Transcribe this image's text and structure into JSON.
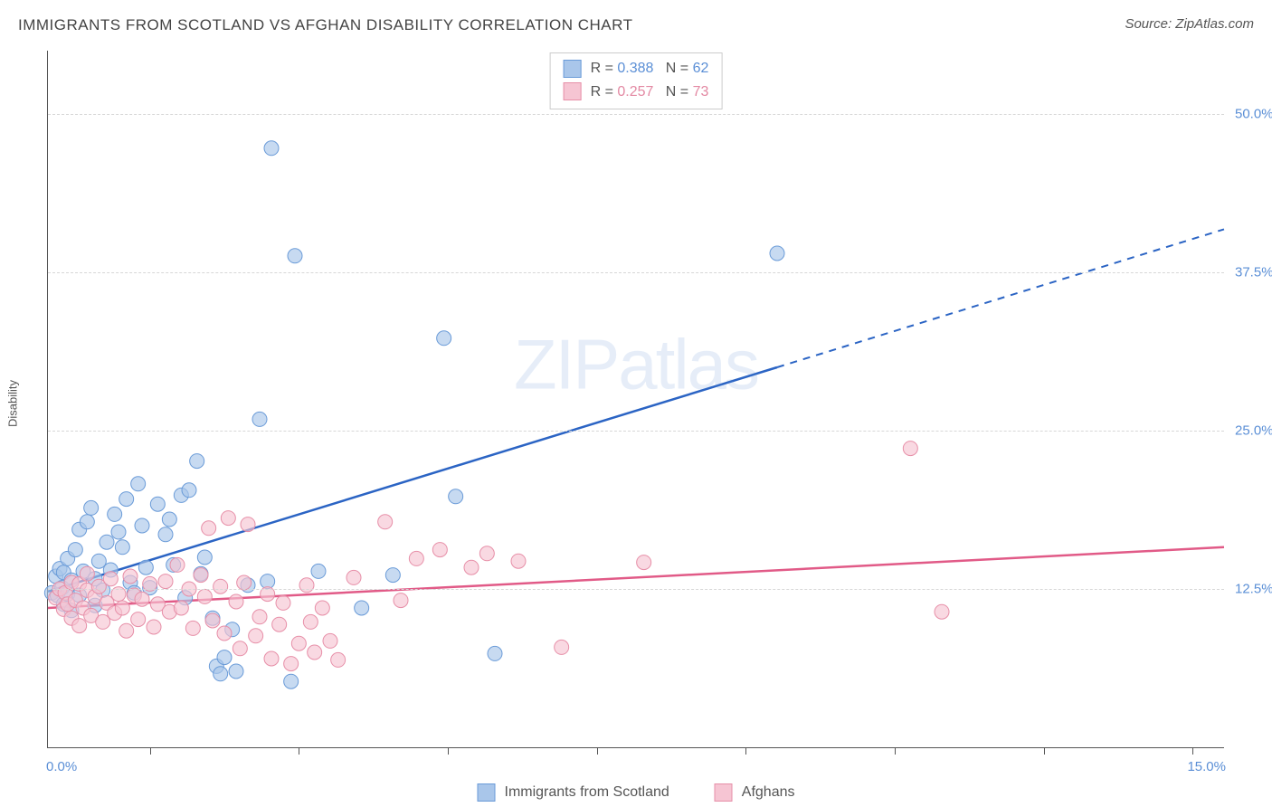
{
  "title": "IMMIGRANTS FROM SCOTLAND VS AFGHAN DISABILITY CORRELATION CHART",
  "source": "Source: ZipAtlas.com",
  "watermark": {
    "bold": "ZIP",
    "thin": "atlas"
  },
  "y_axis_label": "Disability",
  "chart": {
    "type": "scatter",
    "xlim": [
      0,
      15
    ],
    "ylim": [
      0,
      55
    ],
    "x_ticks": [
      1.3,
      3.2,
      5.1,
      7.0,
      8.9,
      10.8,
      12.7,
      14.6
    ],
    "y_grid": [
      12.5,
      25.0,
      37.5,
      50.0
    ],
    "y_tick_labels": [
      "12.5%",
      "25.0%",
      "37.5%",
      "50.0%"
    ],
    "x_min_label": "0.0%",
    "x_max_label": "15.0%",
    "grid_color": "#d7d7d7",
    "axis_color": "#555555",
    "series": [
      {
        "name": "Immigrants from Scotland",
        "fill": "#a9c6ea",
        "stroke": "#6a9bd8",
        "line_color": "#2b64c4",
        "r_value": "0.388",
        "n_value": "62",
        "trend": {
          "x1": 0,
          "y1": 12.3,
          "x2": 9.3,
          "y2": 30.0,
          "dash_from_x": 9.3,
          "dash_to_x": 15.0,
          "dash_to_y": 40.9
        },
        "points": [
          [
            0.05,
            12.2
          ],
          [
            0.1,
            13.5
          ],
          [
            0.12,
            12.0
          ],
          [
            0.15,
            14.1
          ],
          [
            0.18,
            12.6
          ],
          [
            0.2,
            11.3
          ],
          [
            0.2,
            13.8
          ],
          [
            0.25,
            14.9
          ],
          [
            0.25,
            12.1
          ],
          [
            0.3,
            13.2
          ],
          [
            0.3,
            10.8
          ],
          [
            0.35,
            15.6
          ],
          [
            0.4,
            17.2
          ],
          [
            0.4,
            12.0
          ],
          [
            0.45,
            13.9
          ],
          [
            0.5,
            17.8
          ],
          [
            0.55,
            18.9
          ],
          [
            0.6,
            13.3
          ],
          [
            0.6,
            11.2
          ],
          [
            0.65,
            14.7
          ],
          [
            0.7,
            12.4
          ],
          [
            0.75,
            16.2
          ],
          [
            0.8,
            14.0
          ],
          [
            0.85,
            18.4
          ],
          [
            0.9,
            17.0
          ],
          [
            0.95,
            15.8
          ],
          [
            1.0,
            19.6
          ],
          [
            1.05,
            13.0
          ],
          [
            1.1,
            12.2
          ],
          [
            1.15,
            20.8
          ],
          [
            1.2,
            17.5
          ],
          [
            1.25,
            14.2
          ],
          [
            1.3,
            12.6
          ],
          [
            1.4,
            19.2
          ],
          [
            1.5,
            16.8
          ],
          [
            1.55,
            18.0
          ],
          [
            1.6,
            14.4
          ],
          [
            1.7,
            19.9
          ],
          [
            1.75,
            11.8
          ],
          [
            1.8,
            20.3
          ],
          [
            1.9,
            22.6
          ],
          [
            1.95,
            13.7
          ],
          [
            2.0,
            15.0
          ],
          [
            2.1,
            10.2
          ],
          [
            2.15,
            6.4
          ],
          [
            2.2,
            5.8
          ],
          [
            2.25,
            7.1
          ],
          [
            2.35,
            9.3
          ],
          [
            2.4,
            6.0
          ],
          [
            2.55,
            12.8
          ],
          [
            2.7,
            25.9
          ],
          [
            2.8,
            13.1
          ],
          [
            2.85,
            47.3
          ],
          [
            3.1,
            5.2
          ],
          [
            3.15,
            38.8
          ],
          [
            3.45,
            13.9
          ],
          [
            4.0,
            11.0
          ],
          [
            4.4,
            13.6
          ],
          [
            5.05,
            32.3
          ],
          [
            5.2,
            19.8
          ],
          [
            5.7,
            7.4
          ],
          [
            9.3,
            39.0
          ]
        ]
      },
      {
        "name": "Afghans",
        "fill": "#f6c5d3",
        "stroke": "#e78fa8",
        "line_color": "#e15a87",
        "r_value": "0.257",
        "n_value": "73",
        "trend": {
          "x1": 0,
          "y1": 11.0,
          "x2": 15.0,
          "y2": 15.8
        },
        "points": [
          [
            0.1,
            11.8
          ],
          [
            0.15,
            12.5
          ],
          [
            0.2,
            10.9
          ],
          [
            0.22,
            12.2
          ],
          [
            0.25,
            11.3
          ],
          [
            0.3,
            13.0
          ],
          [
            0.3,
            10.2
          ],
          [
            0.35,
            11.6
          ],
          [
            0.4,
            12.9
          ],
          [
            0.4,
            9.6
          ],
          [
            0.45,
            11.0
          ],
          [
            0.5,
            12.4
          ],
          [
            0.5,
            13.7
          ],
          [
            0.55,
            10.4
          ],
          [
            0.6,
            11.9
          ],
          [
            0.65,
            12.7
          ],
          [
            0.7,
            9.9
          ],
          [
            0.75,
            11.4
          ],
          [
            0.8,
            13.3
          ],
          [
            0.85,
            10.6
          ],
          [
            0.9,
            12.1
          ],
          [
            0.95,
            11.0
          ],
          [
            1.0,
            9.2
          ],
          [
            1.05,
            13.5
          ],
          [
            1.1,
            12.0
          ],
          [
            1.15,
            10.1
          ],
          [
            1.2,
            11.7
          ],
          [
            1.3,
            12.9
          ],
          [
            1.35,
            9.5
          ],
          [
            1.4,
            11.3
          ],
          [
            1.5,
            13.1
          ],
          [
            1.55,
            10.7
          ],
          [
            1.65,
            14.4
          ],
          [
            1.7,
            11.0
          ],
          [
            1.8,
            12.5
          ],
          [
            1.85,
            9.4
          ],
          [
            1.95,
            13.6
          ],
          [
            2.0,
            11.9
          ],
          [
            2.05,
            17.3
          ],
          [
            2.1,
            10.0
          ],
          [
            2.2,
            12.7
          ],
          [
            2.25,
            9.0
          ],
          [
            2.3,
            18.1
          ],
          [
            2.4,
            11.5
          ],
          [
            2.45,
            7.8
          ],
          [
            2.5,
            13.0
          ],
          [
            2.55,
            17.6
          ],
          [
            2.65,
            8.8
          ],
          [
            2.7,
            10.3
          ],
          [
            2.8,
            12.1
          ],
          [
            2.85,
            7.0
          ],
          [
            2.95,
            9.7
          ],
          [
            3.0,
            11.4
          ],
          [
            3.1,
            6.6
          ],
          [
            3.2,
            8.2
          ],
          [
            3.3,
            12.8
          ],
          [
            3.35,
            9.9
          ],
          [
            3.4,
            7.5
          ],
          [
            3.5,
            11.0
          ],
          [
            3.6,
            8.4
          ],
          [
            3.7,
            6.9
          ],
          [
            3.9,
            13.4
          ],
          [
            4.3,
            17.8
          ],
          [
            4.5,
            11.6
          ],
          [
            4.7,
            14.9
          ],
          [
            5.0,
            15.6
          ],
          [
            5.4,
            14.2
          ],
          [
            5.6,
            15.3
          ],
          [
            6.0,
            14.7
          ],
          [
            6.55,
            7.9
          ],
          [
            7.6,
            14.6
          ],
          [
            11.0,
            23.6
          ],
          [
            11.4,
            10.7
          ]
        ]
      }
    ]
  },
  "legend_top_labels": {
    "R": "R =",
    "N": "N ="
  }
}
